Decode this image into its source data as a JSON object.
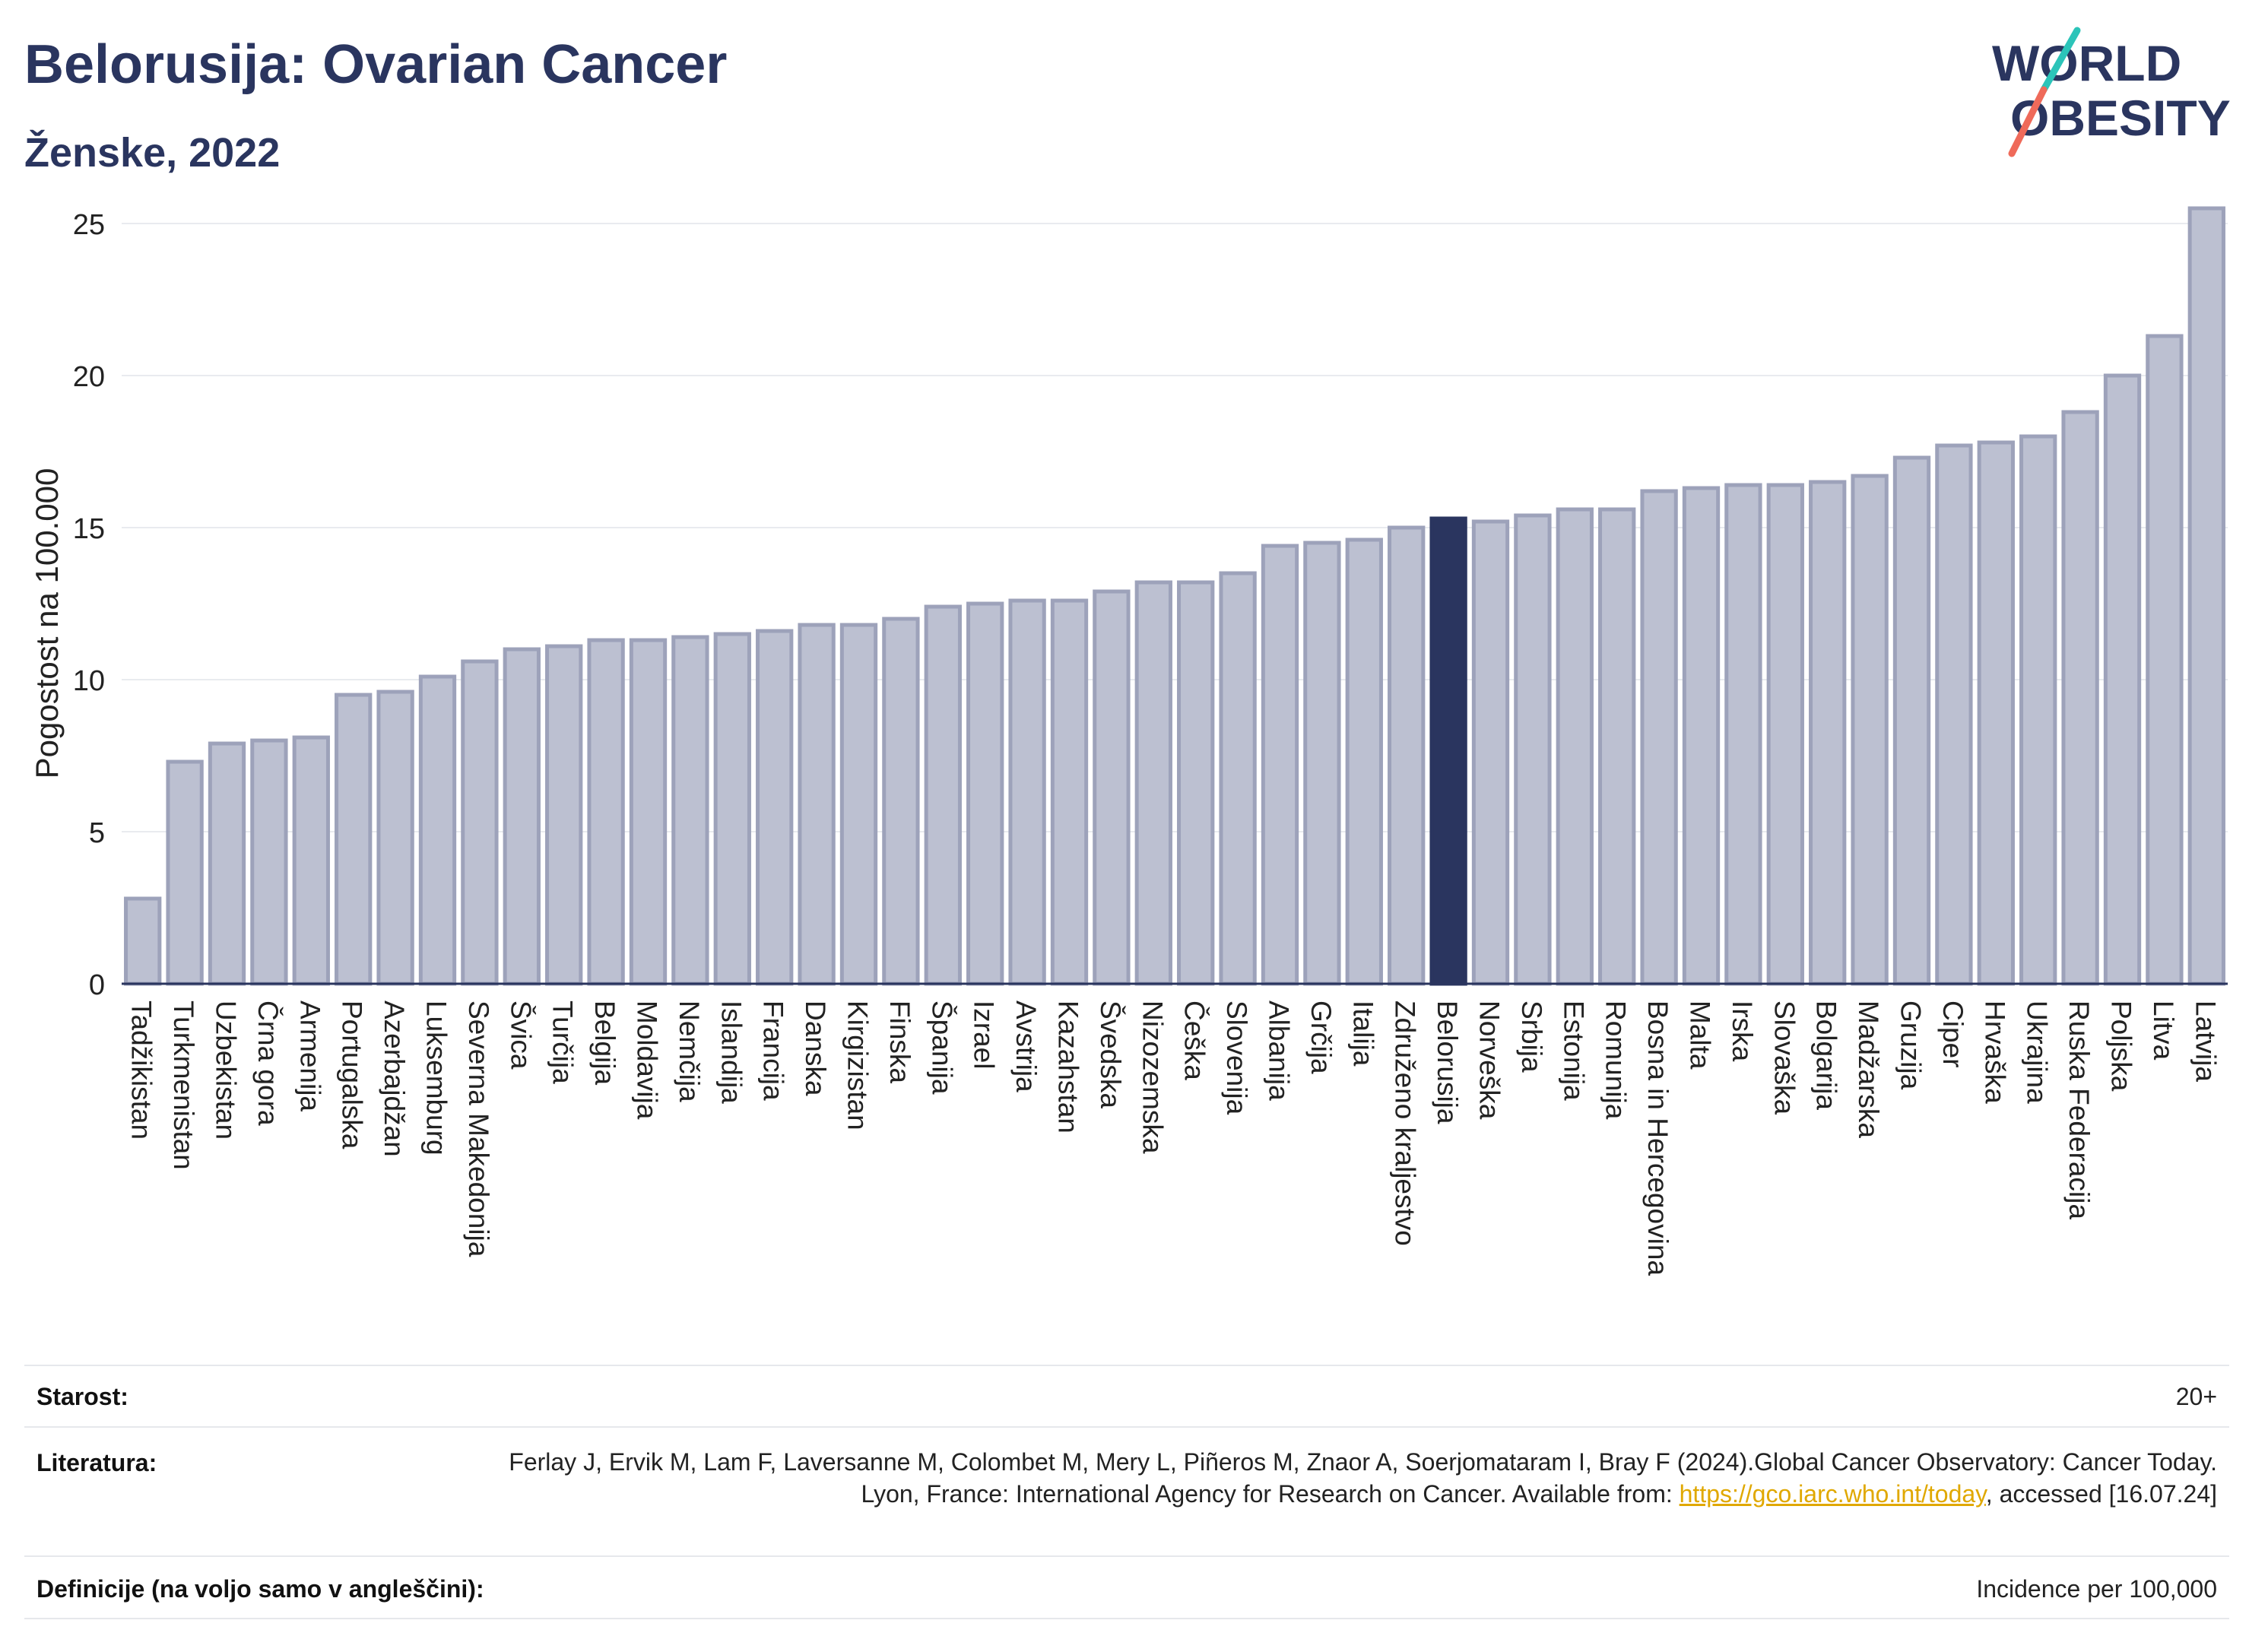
{
  "header": {
    "title": "Belorusija: Ovarian Cancer",
    "subtitle": "Ženske, 2022"
  },
  "logo": {
    "line1": "WORLD",
    "line2": "OBESITY",
    "colors": {
      "text": "#2a355f",
      "teal": "#2cc4b9",
      "coral": "#ef6a5a"
    }
  },
  "colors": {
    "bar": "#bcc0d1",
    "bar_border": "#9da2ba",
    "highlight": "#2a355f",
    "grid": "#e9ebef",
    "axis": "#2a355f"
  },
  "chart_data": {
    "type": "bar",
    "ylabel": "Pogostost na 100.000",
    "ylim": [
      0,
      26
    ],
    "yticks": [
      0,
      5,
      10,
      15,
      20,
      25
    ],
    "grid": true,
    "highlight": "Belorusija",
    "categories": [
      "Tadžikistan",
      "Turkmenistan",
      "Uzbekistan",
      "Črna gora",
      "Armenija",
      "Portugalska",
      "Azerbajdžan",
      "Luksemburg",
      "Severna Makedonija",
      "Švica",
      "Turčija",
      "Belgija",
      "Moldavija",
      "Nemčija",
      "Islandija",
      "Francija",
      "Danska",
      "Kirgizistan",
      "Finska",
      "Španija",
      "Izrael",
      "Avstrija",
      "Kazahstan",
      "Švedska",
      "Nizozemska",
      "Češka",
      "Slovenija",
      "Albanija",
      "Grčija",
      "Italija",
      "Združeno kraljestvo",
      "Belorusija",
      "Norveška",
      "Srbija",
      "Estonija",
      "Romunija",
      "Bosna in Hercegovina",
      "Malta",
      "Irska",
      "Slovaška",
      "Bolgarija",
      "Madžarska",
      "Gruzija",
      "Ciper",
      "Hrvaška",
      "Ukrajina",
      "Ruska Federacija",
      "Poljska",
      "Litva",
      "Latvija"
    ],
    "values": [
      2.8,
      7.3,
      7.9,
      8.0,
      8.1,
      9.5,
      9.6,
      10.1,
      10.6,
      11.0,
      11.1,
      11.3,
      11.3,
      11.4,
      11.5,
      11.6,
      11.8,
      11.8,
      12.0,
      12.4,
      12.5,
      12.6,
      12.6,
      12.9,
      13.2,
      13.2,
      13.5,
      14.4,
      14.5,
      14.6,
      15.0,
      15.3,
      15.2,
      15.4,
      15.6,
      15.6,
      16.2,
      16.3,
      16.4,
      16.4,
      16.5,
      16.7,
      17.3,
      17.7,
      17.8,
      18.0,
      18.8,
      20.0,
      21.3,
      25.5
    ]
  },
  "meta": {
    "age_label": "Starost:",
    "age_value": "20+",
    "ref_label": "Literatura:",
    "ref_text_1": "Ferlay J, Ervik M, Lam F, Laversanne M, Colombet M, Mery L, Piñeros M, Znaor A, Soerjomataram I, Bray F (2024).Global Cancer Observatory: Cancer Today. Lyon, France: International Agency for Research on Cancer. Available from: ",
    "ref_link": "https://gco.iarc.who.int/today",
    "ref_text_2": ", accessed [16.07.24]",
    "def_label": "Definicije (na voljo samo v angleščini):",
    "def_value": "Incidence per 100,000"
  }
}
